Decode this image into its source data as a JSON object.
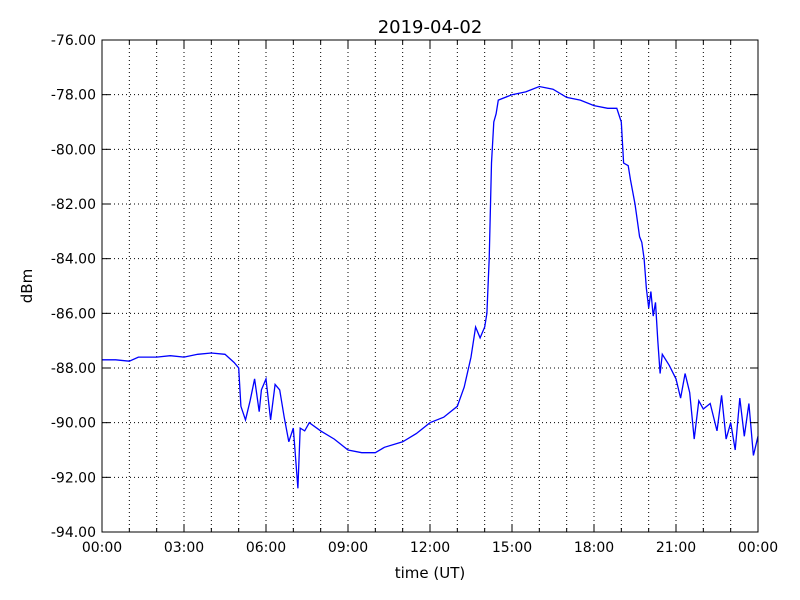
{
  "chart_data": {
    "type": "line",
    "title": "2019-04-02",
    "xlabel": "time (UT)",
    "ylabel": "dBm",
    "xlim": [
      "00:00",
      "24:00"
    ],
    "ylim": [
      -94,
      -76
    ],
    "grid": true,
    "x_ticks": [
      "00:00",
      "03:00",
      "06:00",
      "09:00",
      "12:00",
      "15:00",
      "18:00",
      "21:00",
      "00:00"
    ],
    "y_ticks": [
      "-76.00",
      "-78.00",
      "-80.00",
      "-82.00",
      "-84.00",
      "-86.00",
      "-88.00",
      "-90.00",
      "-92.00",
      "-94.00"
    ],
    "line_color": "#0000ff",
    "series": [
      {
        "x": [
          "00:00",
          "00:30",
          "01:00",
          "01:20",
          "02:00",
          "02:30",
          "03:00",
          "03:30",
          "04:00",
          "04:30",
          "04:50",
          "05:00",
          "05:05",
          "05:15",
          "05:25",
          "05:35",
          "05:45",
          "05:50",
          "06:00",
          "06:10",
          "06:20",
          "06:30",
          "06:40",
          "06:50",
          "07:00",
          "07:05",
          "07:10",
          "07:15",
          "07:25",
          "07:35",
          "08:00",
          "08:30",
          "09:00",
          "09:30",
          "10:00",
          "10:20",
          "11:00",
          "11:30",
          "12:00",
          "12:30",
          "13:00",
          "13:15",
          "13:30",
          "13:40",
          "13:50",
          "14:00",
          "14:05",
          "14:10",
          "14:15",
          "14:20",
          "14:25",
          "14:30",
          "15:00",
          "15:30",
          "16:00",
          "16:30",
          "17:00",
          "17:30",
          "18:00",
          "18:30",
          "18:50",
          "19:00",
          "19:05",
          "19:15",
          "19:20",
          "19:30",
          "19:40",
          "19:45",
          "19:50",
          "19:55",
          "20:00",
          "20:05",
          "20:10",
          "20:15",
          "20:20",
          "20:25",
          "20:30",
          "20:45",
          "21:00",
          "21:10",
          "21:20",
          "21:30",
          "21:40",
          "21:50",
          "22:00",
          "22:15",
          "22:30",
          "22:40",
          "22:50",
          "23:00",
          "23:10",
          "23:20",
          "23:30",
          "23:40",
          "23:50",
          "24:00"
        ],
        "y": [
          -87.7,
          -87.7,
          -87.75,
          -87.6,
          -87.6,
          -87.55,
          -87.6,
          -87.5,
          -87.45,
          -87.5,
          -87.8,
          -88.0,
          -89.4,
          -89.9,
          -89.2,
          -88.4,
          -89.6,
          -88.8,
          -88.4,
          -89.9,
          -88.6,
          -88.8,
          -89.8,
          -90.7,
          -90.2,
          -91.3,
          -92.4,
          -90.2,
          -90.3,
          -90.0,
          -90.3,
          -90.6,
          -91.0,
          -91.1,
          -91.1,
          -90.9,
          -90.7,
          -90.4,
          -90.0,
          -89.8,
          -89.4,
          -88.7,
          -87.6,
          -86.5,
          -86.9,
          -86.5,
          -86.0,
          -84.0,
          -80.5,
          -79.0,
          -78.7,
          -78.2,
          -78.0,
          -77.9,
          -77.7,
          -77.8,
          -78.1,
          -78.2,
          -78.4,
          -78.5,
          -78.5,
          -79.0,
          -80.5,
          -80.6,
          -81.1,
          -82.0,
          -83.2,
          -83.4,
          -84.0,
          -85.1,
          -85.8,
          -85.2,
          -86.1,
          -85.6,
          -87.0,
          -88.2,
          -87.5,
          -87.9,
          -88.4,
          -89.1,
          -88.2,
          -88.9,
          -90.6,
          -89.2,
          -89.5,
          -89.3,
          -90.3,
          -89.0,
          -90.6,
          -90.0,
          -91.0,
          -89.1,
          -90.5,
          -89.3,
          -91.2,
          -90.5
        ]
      }
    ]
  }
}
